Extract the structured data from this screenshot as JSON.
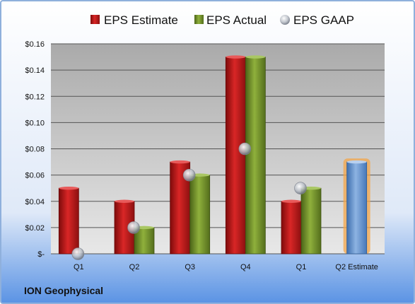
{
  "chart_data": {
    "type": "bar",
    "categories": [
      "Q1",
      "Q2",
      "Q3",
      "Q4",
      "Q1",
      "Q2 Estimate"
    ],
    "series": [
      {
        "name": "EPS Estimate",
        "kind": "bar",
        "color": "#c81e1e",
        "values": [
          0.05,
          0.04,
          0.07,
          0.15,
          0.04,
          null
        ]
      },
      {
        "name": "EPS Actual",
        "kind": "bar",
        "color": "#7a9a2e",
        "values": [
          null,
          0.02,
          0.06,
          0.15,
          0.05,
          0.07
        ],
        "highlight_color": "#6f9bd1",
        "glow_color": "#f3a64a"
      },
      {
        "name": "EPS GAAP",
        "kind": "marker",
        "color": "#b9bec6",
        "values": [
          0.0,
          0.02,
          0.06,
          0.08,
          0.05,
          null
        ]
      }
    ],
    "y_ticks": [
      "$-",
      "$0.02",
      "$0.04",
      "$0.06",
      "$0.08",
      "$0.10",
      "$0.12",
      "$0.14",
      "$0.16"
    ],
    "ylim": [
      0,
      0.16
    ],
    "grid": true,
    "legend_position": "top",
    "footer_label": "ION Geophysical",
    "colors": {
      "frame_border": "#8fb0dc",
      "background_top": "#ffffff",
      "background_bottom": "#5a93e4",
      "plot_top": "#aaaaaa",
      "plot_bottom": "#e8e8e8",
      "gridline": "#555555"
    }
  }
}
